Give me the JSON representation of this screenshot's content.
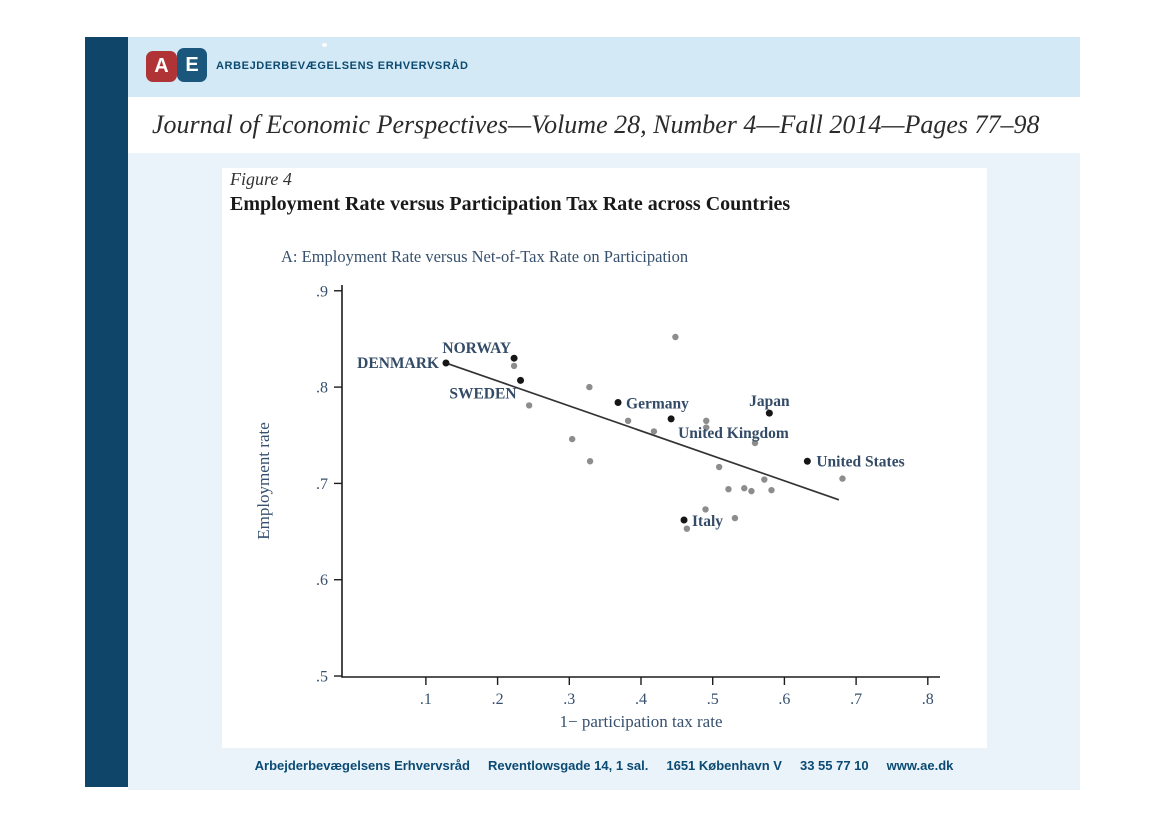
{
  "header": {
    "logo_letter_a": "A",
    "logo_letter_e": "E",
    "org_name": "ARBEJDERBEVÆGELSENS ERHVERVSRÅD"
  },
  "journal_line": "Journal of Economic Perspectives—Volume 28, Number 4—Fall 2014—Pages 77–98",
  "figure": {
    "label": "Figure 4",
    "title": "Employment Rate versus Participation Tax Rate across Countries"
  },
  "footer": {
    "segments": [
      "Arbejderbevægelsens Erhvervsråd",
      "Reventlowsgade 14, 1 sal.",
      "1651 København V",
      "33 55 77 10",
      "www.ae.dk"
    ]
  },
  "colors": {
    "navy_bar": "#0e4569",
    "header_strip_blue": "#d3eaf6",
    "panel_blue": "#eaf3fa",
    "logo_red": "#b03336",
    "logo_blue": "#1b577d",
    "footer_text": "#0b4a73",
    "chart_text": "#36506e",
    "dot_black": "#161616",
    "dot_gray": "#8d8d8d",
    "trend_line": "#333333"
  },
  "chart_data": {
    "type": "scatter",
    "title": "A: Employment Rate versus Net-of-Tax Rate on Participation",
    "xlabel": "1− participation tax rate",
    "ylabel": "Employment rate",
    "xlim": [
      -0.017,
      0.817
    ],
    "ylim": [
      0.499,
      0.906
    ],
    "grid": false,
    "x_ticks": [
      {
        "v": 0.1,
        "label": ".1"
      },
      {
        "v": 0.2,
        "label": ".2"
      },
      {
        "v": 0.3,
        "label": ".3"
      },
      {
        "v": 0.4,
        "label": ".4"
      },
      {
        "v": 0.5,
        "label": ".5"
      },
      {
        "v": 0.6,
        "label": ".6"
      },
      {
        "v": 0.7,
        "label": ".7"
      },
      {
        "v": 0.8,
        "label": ".8"
      }
    ],
    "y_ticks": [
      {
        "v": 0.5,
        "label": ".5"
      },
      {
        "v": 0.6,
        "label": ".6"
      },
      {
        "v": 0.7,
        "label": ".7"
      },
      {
        "v": 0.8,
        "label": ".8"
      },
      {
        "v": 0.9,
        "label": ".9"
      }
    ],
    "series": [
      {
        "name": "labeled_countries",
        "color": "#161616",
        "radius": 3.5,
        "points": [
          {
            "x": 0.128,
            "y": 0.825,
            "label": "DENMARK",
            "anchor": "end",
            "dx": -7,
            "dy": 5
          },
          {
            "x": 0.223,
            "y": 0.83,
            "label": "NORWAY",
            "anchor": "end",
            "dx": -3,
            "dy": -5
          },
          {
            "x": 0.232,
            "y": 0.807,
            "label": "SWEDEN",
            "anchor": "end",
            "dx": -4,
            "dy": 18
          },
          {
            "x": 0.368,
            "y": 0.784,
            "label": "Germany",
            "anchor": "start",
            "dx": 8,
            "dy": 6
          },
          {
            "x": 0.442,
            "y": 0.767,
            "label": "United Kingdom",
            "anchor": "start",
            "dx": 7,
            "dy": 19
          },
          {
            "x": 0.579,
            "y": 0.773,
            "label": "Japan",
            "anchor": "middle",
            "dx": 0,
            "dy": -7
          },
          {
            "x": 0.632,
            "y": 0.723,
            "label": "United States",
            "anchor": "start",
            "dx": 9,
            "dy": 5
          },
          {
            "x": 0.46,
            "y": 0.662,
            "label": "Italy",
            "anchor": "start",
            "dx": 8,
            "dy": 6
          }
        ]
      },
      {
        "name": "unlabeled_countries",
        "color": "#8d8d8d",
        "radius": 3.2,
        "points": [
          {
            "x": 0.223,
            "y": 0.822
          },
          {
            "x": 0.244,
            "y": 0.781
          },
          {
            "x": 0.328,
            "y": 0.8
          },
          {
            "x": 0.448,
            "y": 0.852
          },
          {
            "x": 0.382,
            "y": 0.765
          },
          {
            "x": 0.491,
            "y": 0.765
          },
          {
            "x": 0.491,
            "y": 0.758
          },
          {
            "x": 0.418,
            "y": 0.754
          },
          {
            "x": 0.304,
            "y": 0.746
          },
          {
            "x": 0.329,
            "y": 0.723
          },
          {
            "x": 0.559,
            "y": 0.742
          },
          {
            "x": 0.509,
            "y": 0.717
          },
          {
            "x": 0.681,
            "y": 0.705
          },
          {
            "x": 0.572,
            "y": 0.704
          },
          {
            "x": 0.522,
            "y": 0.694
          },
          {
            "x": 0.544,
            "y": 0.695
          },
          {
            "x": 0.554,
            "y": 0.692
          },
          {
            "x": 0.582,
            "y": 0.693
          },
          {
            "x": 0.49,
            "y": 0.673
          },
          {
            "x": 0.531,
            "y": 0.664
          },
          {
            "x": 0.464,
            "y": 0.653
          }
        ]
      }
    ],
    "trend_line": {
      "x1": 0.128,
      "y1": 0.825,
      "x2": 0.676,
      "y2": 0.683
    }
  }
}
